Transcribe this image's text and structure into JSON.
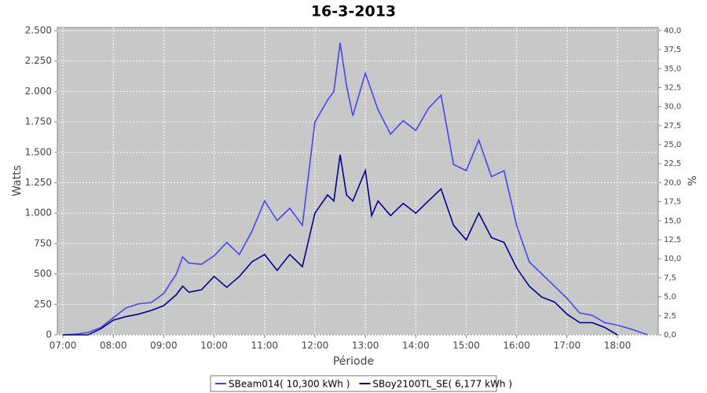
{
  "chart_data": {
    "type": "line",
    "title": "16-3-2013",
    "xlabel": "Période",
    "ylabel": "Watts",
    "y2label": "%",
    "grid": true,
    "legend": "bottom",
    "xlim": [
      6.89,
      18.81
    ],
    "ylim": [
      0,
      2526
    ],
    "y2lim": [
      0,
      40.4
    ],
    "xticks": [
      {
        "value": 7,
        "label": "07:00"
      },
      {
        "value": 8,
        "label": "08:00"
      },
      {
        "value": 9,
        "label": "09:00"
      },
      {
        "value": 10,
        "label": "10:00"
      },
      {
        "value": 11,
        "label": "11:00"
      },
      {
        "value": 12,
        "label": "12:00"
      },
      {
        "value": 13,
        "label": "13:00"
      },
      {
        "value": 14,
        "label": "14:00"
      },
      {
        "value": 15,
        "label": "15:00"
      },
      {
        "value": 16,
        "label": "16:00"
      },
      {
        "value": 17,
        "label": "17:00"
      },
      {
        "value": 18,
        "label": "18:00"
      }
    ],
    "yticks": [
      0,
      250,
      500,
      750,
      {
        "value": 1000,
        "label": "1.000"
      },
      {
        "value": 1250,
        "label": "1.250"
      },
      {
        "value": 1500,
        "label": "1.500"
      },
      {
        "value": 1750,
        "label": "1.750"
      },
      {
        "value": 2000,
        "label": "2.000"
      },
      {
        "value": 2250,
        "label": "2.250"
      },
      {
        "value": 2500,
        "label": "2.500"
      }
    ],
    "y2ticks": [
      {
        "value": 0,
        "label": "0,0"
      },
      {
        "value": 2.5,
        "label": "2,5"
      },
      {
        "value": 5,
        "label": "5,0"
      },
      {
        "value": 7.5,
        "label": "7,5"
      },
      {
        "value": 10,
        "label": "10,0"
      },
      {
        "value": 12.5,
        "label": "12,5"
      },
      {
        "value": 15,
        "label": "15,0"
      },
      {
        "value": 17.5,
        "label": "17,5"
      },
      {
        "value": 20,
        "label": "20,0"
      },
      {
        "value": 22.5,
        "label": "22,5"
      },
      {
        "value": 25,
        "label": "25,0"
      },
      {
        "value": 27.5,
        "label": "27,5"
      },
      {
        "value": 30,
        "label": "30,0"
      },
      {
        "value": 32.5,
        "label": "32,5"
      },
      {
        "value": 35,
        "label": "35,0"
      },
      {
        "value": 37.5,
        "label": "37,5"
      },
      {
        "value": 40,
        "label": "40,0"
      }
    ],
    "x": [
      7,
      7.25,
      7.5,
      7.75,
      8,
      8.25,
      8.5,
      8.75,
      9,
      9.25,
      9.375,
      9.5,
      9.75,
      10,
      10.25,
      10.5,
      10.75,
      11,
      11.25,
      11.5,
      11.75,
      12,
      12.25,
      12.375,
      12.5,
      12.625,
      12.75,
      13,
      13.125,
      13.25,
      13.5,
      13.75,
      14,
      14.25,
      14.5,
      14.75,
      15,
      15.25,
      15.5,
      15.75,
      16,
      16.25,
      16.5,
      16.75,
      17,
      17.25,
      17.5,
      17.75,
      18,
      18.25,
      18.5,
      18.6
    ],
    "series": [
      {
        "name": "SBeam014( 10,300 kWh )",
        "color": "#4646f0",
        "values": [
          0,
          5,
          20,
          60,
          140,
          220,
          255,
          265,
          340,
          500,
          640,
          590,
          580,
          650,
          760,
          660,
          850,
          1100,
          940,
          1040,
          900,
          1750,
          1930,
          2000,
          2400,
          2050,
          1800,
          2150,
          2000,
          1850,
          1650,
          1760,
          1680,
          1860,
          1970,
          1400,
          1350,
          1600,
          1300,
          1350,
          900,
          600,
          500,
          400,
          300,
          180,
          160,
          100,
          80,
          50,
          15,
          0
        ]
      },
      {
        "name": "SBoy2100TL_SE( 6,177 kWh )",
        "color": "#000090",
        "values": [
          0,
          0,
          0,
          50,
          120,
          150,
          170,
          200,
          240,
          330,
          400,
          350,
          370,
          480,
          390,
          480,
          600,
          660,
          530,
          660,
          560,
          1000,
          1150,
          1100,
          1480,
          1150,
          1100,
          1350,
          980,
          1100,
          980,
          1080,
          1000,
          1100,
          1200,
          900,
          780,
          1000,
          800,
          760,
          550,
          400,
          310,
          270,
          170,
          100,
          100,
          60,
          0,
          null,
          null,
          null
        ]
      }
    ]
  }
}
